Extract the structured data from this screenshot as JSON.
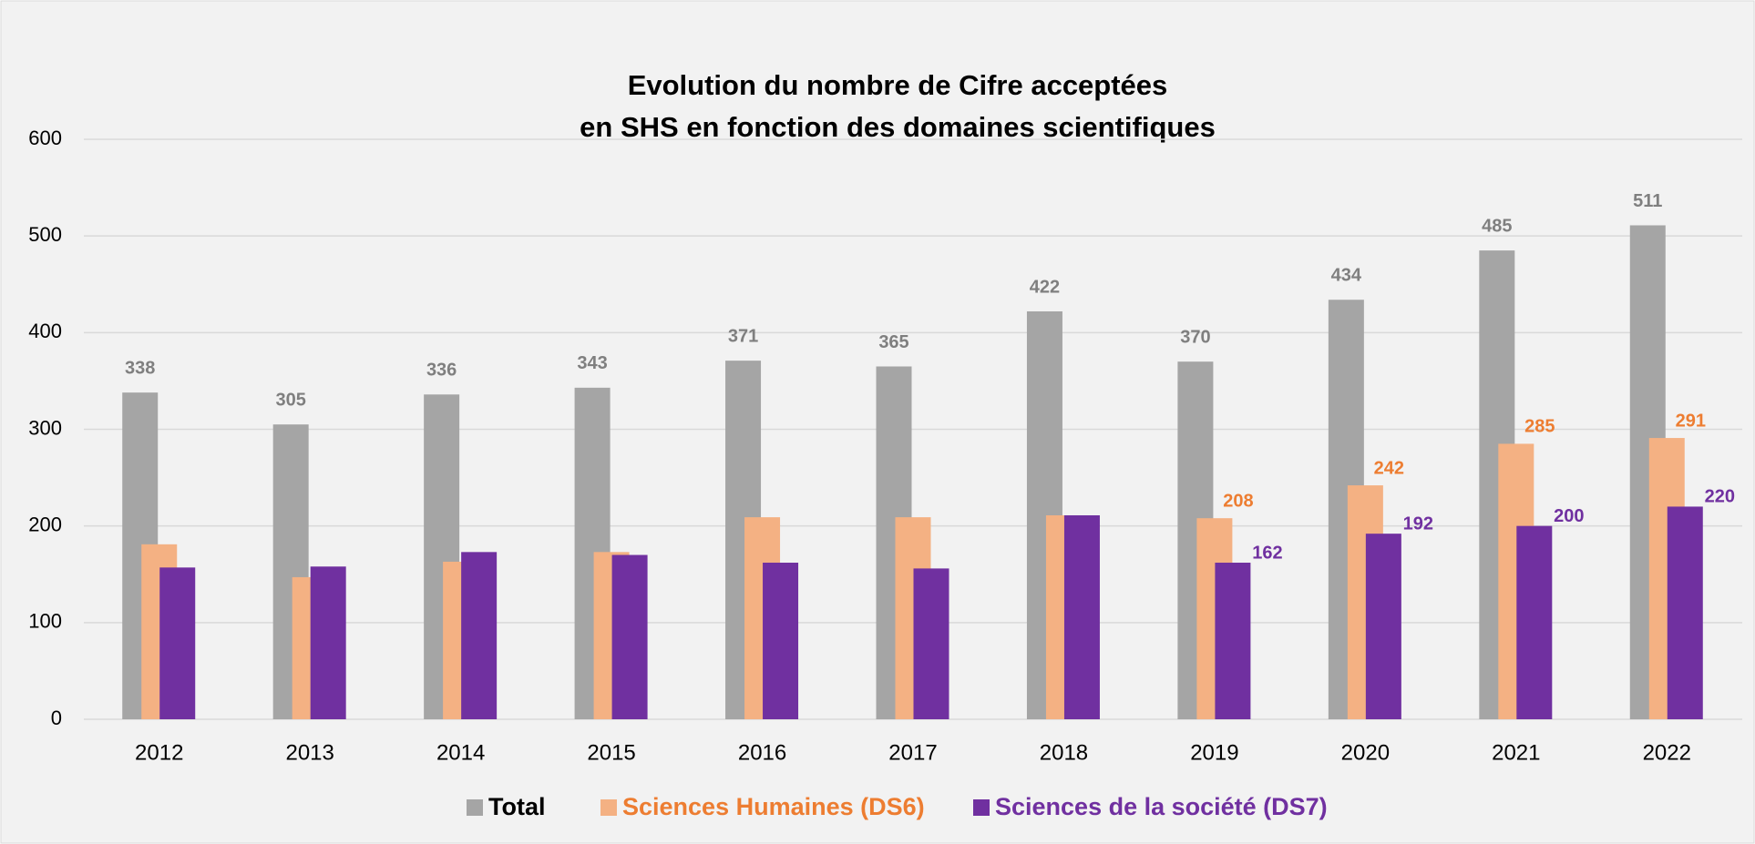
{
  "chart_data": {
    "type": "bar",
    "title": [
      "Evolution du nombre de Cifre acceptées",
      "en SHS en fonction des domaines scientifiques"
    ],
    "categories": [
      "2012",
      "2013",
      "2014",
      "2015",
      "2016",
      "2017",
      "2018",
      "2019",
      "2020",
      "2021",
      "2022"
    ],
    "series": [
      {
        "name": "Total",
        "color": "#a5a5a5",
        "label_color": "#7f7f7f",
        "legend_color": "#000000",
        "values": [
          338,
          305,
          336,
          343,
          371,
          365,
          422,
          370,
          434,
          485,
          511
        ],
        "value_labels": [
          "338",
          "305",
          "336",
          "343",
          "371",
          "365",
          "422",
          "370",
          "434",
          "485",
          "511"
        ]
      },
      {
        "name": "Sciences Humaines (DS6)",
        "color": "#f4b183",
        "label_color": "#ed7d31",
        "legend_color": "#ed7d31",
        "values": [
          181,
          147,
          163,
          173,
          209,
          209,
          211,
          208,
          242,
          285,
          291
        ],
        "value_labels": [
          null,
          null,
          null,
          null,
          null,
          null,
          null,
          "208",
          "242",
          "285",
          "291"
        ]
      },
      {
        "name": "Sciences de la société (DS7)",
        "color": "#7030a0",
        "label_color": "#7030a0",
        "legend_color": "#7030a0",
        "values": [
          157,
          158,
          173,
          170,
          162,
          156,
          211,
          162,
          192,
          200,
          220
        ],
        "value_labels": [
          null,
          null,
          null,
          null,
          null,
          null,
          null,
          "162",
          "192",
          "200",
          "220"
        ]
      }
    ],
    "ylim": [
      0,
      600
    ],
    "yticks": [
      0,
      100,
      200,
      300,
      400,
      500,
      600
    ],
    "grid": true,
    "legend": "bottom"
  }
}
